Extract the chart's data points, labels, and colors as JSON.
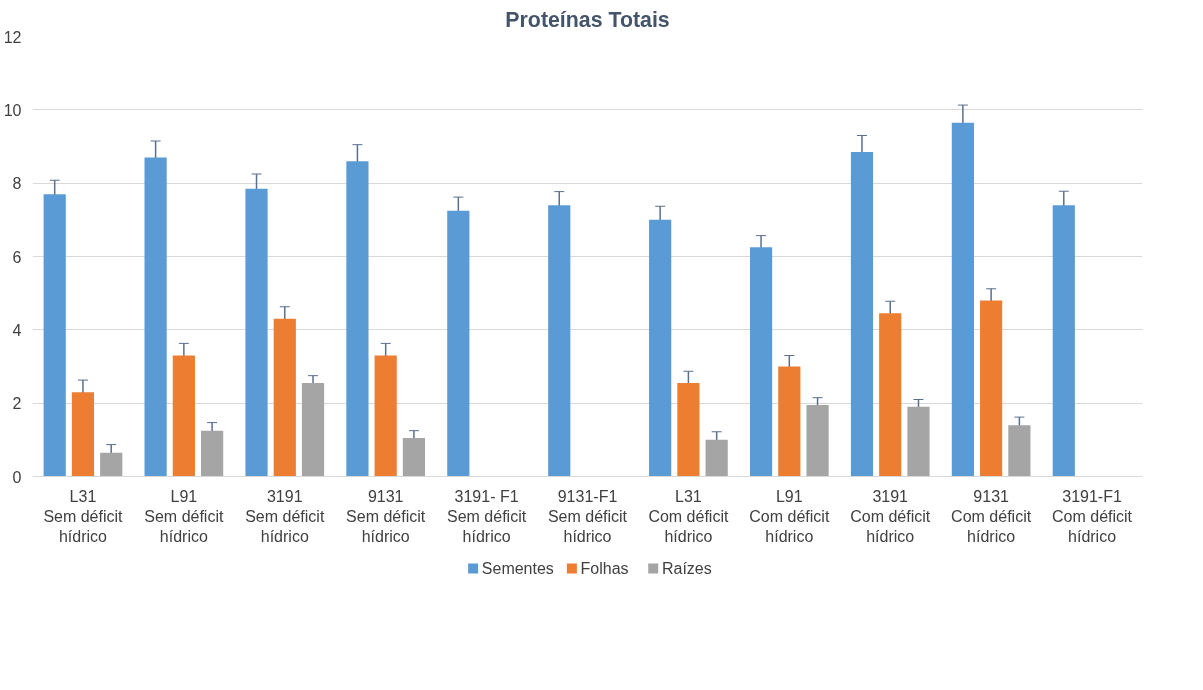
{
  "chart_data": {
    "type": "bar",
    "title": "Proteínas Totais",
    "categories": [
      "L31\nSem déficit\nhídrico",
      "L91\nSem déficit\nhídrico",
      "3191\nSem déficit\nhídrico",
      "9131\nSem déficit\nhídrico",
      "3191- F1\nSem déficit\nhídrico",
      "9131-F1\nSem déficit\nhídrico",
      "L31\nCom déficit\nhídrico",
      "L91\nCom déficit\nhídrico",
      "3191\nCom déficit\nhídrico",
      "9131\nCom déficit\nhídrico",
      "3191-F1\nCom déficit\nhídrico"
    ],
    "series": [
      {
        "name": "Sementes",
        "color": "#5b9bd5",
        "values": [
          7.7,
          8.7,
          7.85,
          8.6,
          7.25,
          7.4,
          7.0,
          6.25,
          8.85,
          9.65,
          7.4
        ],
        "errors": [
          0.38,
          0.45,
          0.4,
          0.45,
          0.37,
          0.37,
          0.37,
          0.32,
          0.45,
          0.48,
          0.38
        ]
      },
      {
        "name": "Folhas",
        "color": "#ed7d31",
        "values": [
          2.3,
          3.3,
          4.3,
          3.3,
          null,
          null,
          2.55,
          3.0,
          4.45,
          4.8,
          null
        ],
        "errors": [
          0.33,
          0.33,
          0.33,
          0.33,
          null,
          null,
          0.32,
          0.3,
          0.33,
          0.32,
          null
        ]
      },
      {
        "name": "Raízes",
        "color": "#a5a5a5",
        "values": [
          0.65,
          1.25,
          2.55,
          1.05,
          null,
          null,
          1.0,
          1.95,
          1.9,
          1.4,
          null
        ],
        "errors": [
          0.22,
          0.22,
          0.2,
          0.2,
          null,
          null,
          0.22,
          0.2,
          0.2,
          0.22,
          null
        ]
      }
    ],
    "ylim": [
      0,
      12
    ],
    "yticks": [
      0,
      2,
      4,
      6,
      8,
      10,
      12
    ],
    "grid": "y",
    "legend": "bottom"
  }
}
